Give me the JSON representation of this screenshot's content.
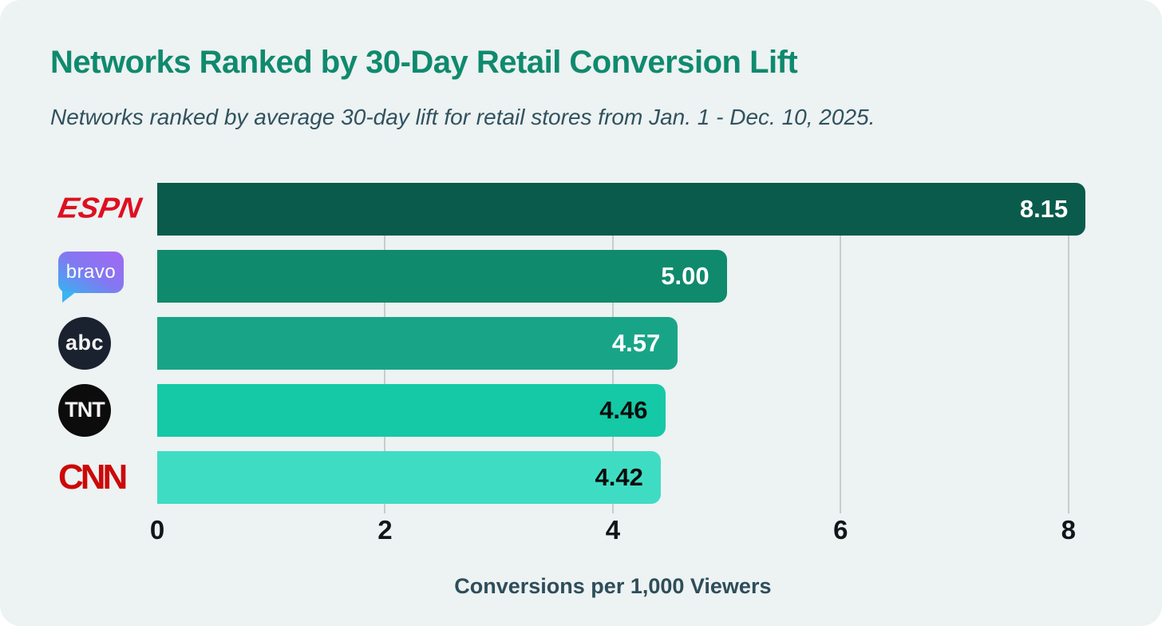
{
  "chart_data": {
    "type": "bar",
    "orientation": "horizontal",
    "title": "Networks Ranked by 30-Day Retail Conversion Lift",
    "subtitle": "Networks ranked by average 30-day lift for retail stores from Jan. 1 - Dec. 10, 2025.",
    "xlabel": "Conversions per 1,000 Viewers",
    "categories": [
      "ESPN",
      "Bravo",
      "ABC",
      "TNT",
      "CNN"
    ],
    "values": [
      8.15,
      5.0,
      4.57,
      4.46,
      4.42
    ],
    "value_labels": [
      "8.15",
      "5.00",
      "4.57",
      "4.46",
      "4.42"
    ],
    "bar_colors": [
      "#0a5b4c",
      "#0f8a6d",
      "#18a587",
      "#15c9a6",
      "#3fdcc4"
    ],
    "value_label_colors": [
      "#ffffff",
      "#ffffff",
      "#ffffff",
      "#0c0c0c",
      "#0c0c0c"
    ],
    "x_ticks": [
      0,
      2,
      4,
      6,
      8
    ],
    "xlim": [
      0,
      8.38
    ],
    "grid": "vertical gridlines at ticks",
    "legend": "none"
  },
  "logos": {
    "espn": "ESPN",
    "bravo": "bravo",
    "abc": "abc",
    "tnt": "TNT",
    "cnn": "CNN"
  },
  "colors": {
    "page_bg": "#ffffff",
    "card_bg": "#edf2f2",
    "title": "#0f8a6e",
    "subtitle": "#31525f",
    "gridline": "#c4cecf",
    "tick_label": "#10161a",
    "axis_title": "#2e4d5a",
    "espn_red": "#dd1021",
    "cnn_red": "#cc0808",
    "abc_circle_bg": "#1a2230",
    "tnt_circle_bg": "#0c0c0c",
    "bravo_gradient_start": "#35b3f2",
    "bravo_gradient_end": "#a368f3"
  }
}
